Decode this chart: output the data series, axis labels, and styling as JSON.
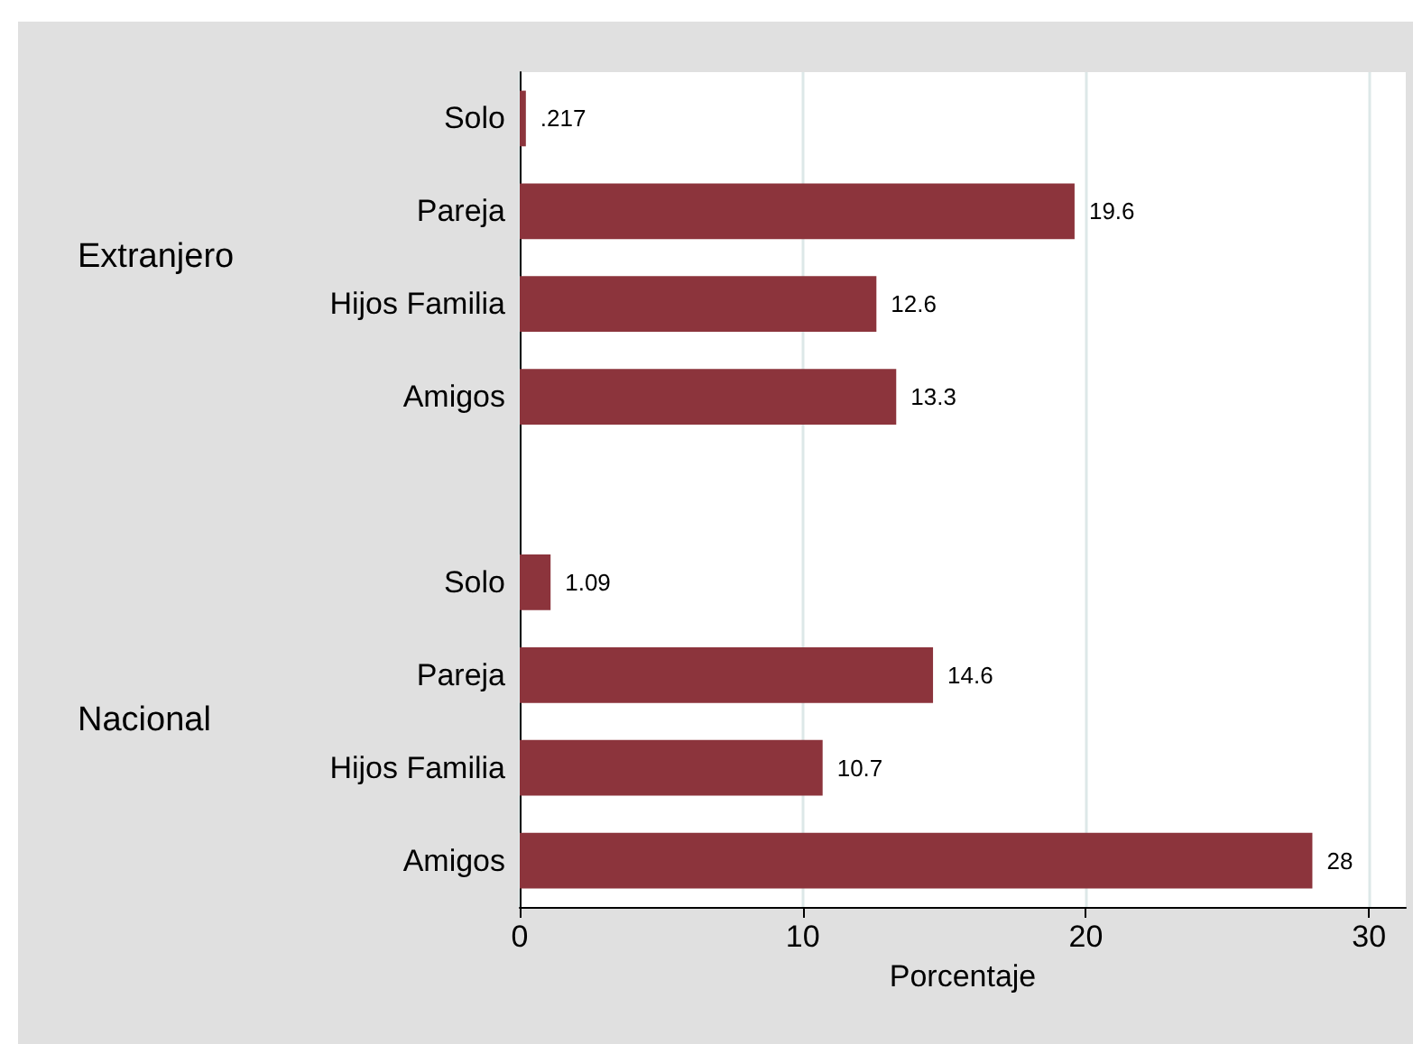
{
  "chart_data": {
    "type": "bar",
    "orientation": "horizontal",
    "xlabel": "Porcentaje",
    "categories": [
      "Solo",
      "Pareja",
      "Hijos Familia",
      "Amigos",
      null,
      "Solo",
      "Pareja",
      "Hijos Familia",
      "Amigos"
    ],
    "values": [
      0.217,
      19.6,
      12.6,
      13.3,
      null,
      1.09,
      14.6,
      10.7,
      28
    ],
    "value_labels": [
      ".217",
      "19.6",
      "12.6",
      "13.3",
      null,
      "1.09",
      "14.6",
      "10.7",
      "28"
    ],
    "color": "#8c343c",
    "annotations": [
      "Extranjero",
      "Nacional"
    ],
    "xlim": [
      0,
      31.3
    ],
    "xticks": [
      0,
      10,
      20,
      30
    ],
    "grid": "x"
  }
}
